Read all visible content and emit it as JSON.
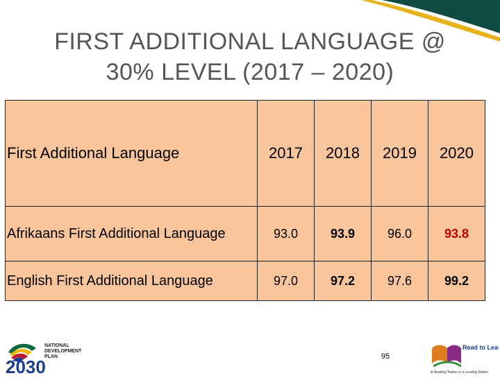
{
  "title": {
    "line1": "FIRST ADDITIONAL LANGUAGE @",
    "line2": "30% LEVEL (2017 – 2020)"
  },
  "table": {
    "header": [
      "First Additional Language",
      "2017",
      "2018",
      "2019",
      "2020"
    ],
    "rows": [
      {
        "label": "Afrikaans First Additional Language",
        "values": [
          "93.0",
          "93.9",
          "96.0",
          "93.8"
        ]
      },
      {
        "label": "English First Additional Language",
        "values": [
          "97.0",
          "97.2",
          "97.6",
          "99.2"
        ]
      }
    ]
  },
  "colors": {
    "table_bg": "#f8c59c",
    "highlight": "#c00000",
    "title": "#555555",
    "band_dark": "#0f4a43",
    "band_gold": "#e8b21a"
  },
  "footer": {
    "page_number": "95",
    "ndp_logo_lines": [
      "NATIONAL",
      "DEVELOPMENT",
      "PLAN",
      "2030"
    ],
    "rtl_logo_title": "Read to Lead",
    "rtl_logo_tagline": "A Reading Nation is a Leading Nation",
    "icons": [
      "ndp-2030-logo",
      "read-to-lead-logo"
    ]
  }
}
